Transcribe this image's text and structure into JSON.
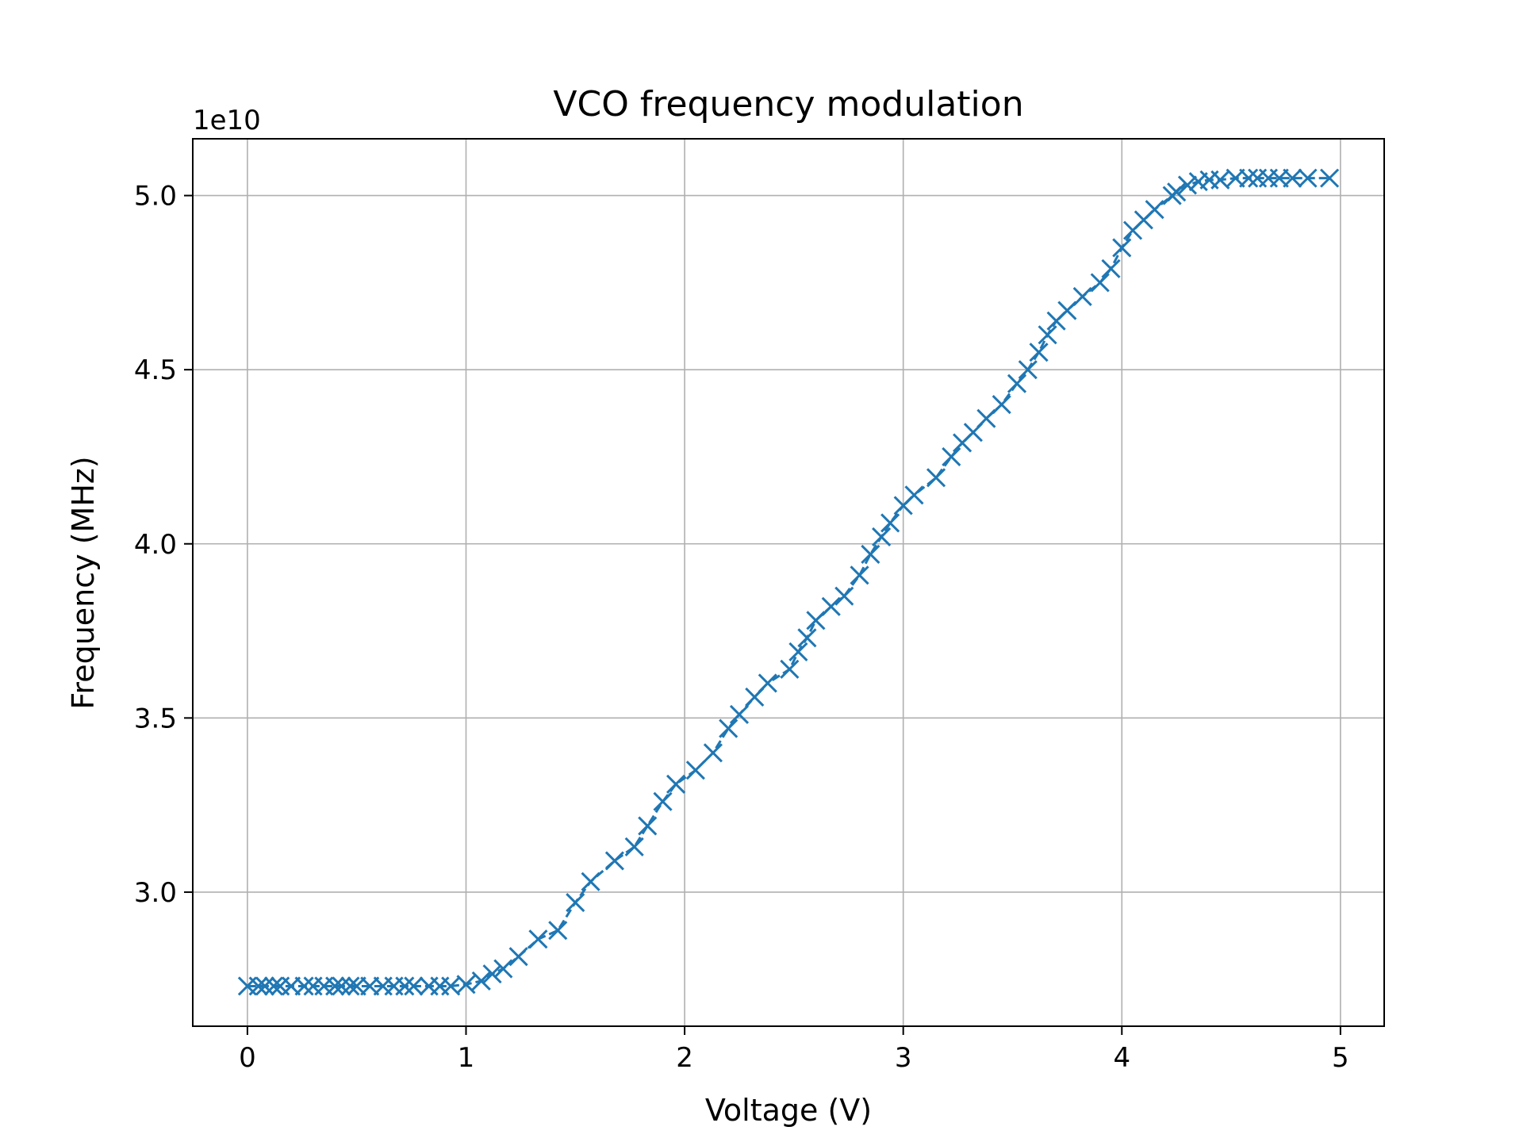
{
  "chart_data": {
    "type": "line",
    "title": "VCO frequency modulation",
    "xlabel": "Voltage (V)",
    "ylabel": "Frequency (MHz)",
    "y_offset_label": "1e10",
    "xlim": [
      -0.25,
      5.2
    ],
    "ylim": [
      2.615,
      5.163
    ],
    "x_ticks": [
      0,
      1,
      2,
      3,
      4,
      5
    ],
    "x_tick_labels": [
      "0",
      "1",
      "2",
      "3",
      "4",
      "5"
    ],
    "y_ticks": [
      3.0,
      3.5,
      4.0,
      4.5,
      5.0
    ],
    "y_tick_labels": [
      "3.0",
      "3.5",
      "4.0",
      "4.5",
      "5.0"
    ],
    "grid": true,
    "legend": "none",
    "series": [
      {
        "marker": "x",
        "color": "#1f77b4",
        "linestyle": "dashed",
        "points": [
          [
            0.0,
            2.73
          ],
          [
            0.05,
            2.73
          ],
          [
            0.08,
            2.73
          ],
          [
            0.12,
            2.73
          ],
          [
            0.15,
            2.73
          ],
          [
            0.2,
            2.73
          ],
          [
            0.26,
            2.73
          ],
          [
            0.3,
            2.73
          ],
          [
            0.35,
            2.73
          ],
          [
            0.4,
            2.73
          ],
          [
            0.43,
            2.73
          ],
          [
            0.47,
            2.73
          ],
          [
            0.5,
            2.73
          ],
          [
            0.56,
            2.73
          ],
          [
            0.62,
            2.73
          ],
          [
            0.67,
            2.73
          ],
          [
            0.72,
            2.73
          ],
          [
            0.76,
            2.73
          ],
          [
            0.83,
            2.73
          ],
          [
            0.88,
            2.73
          ],
          [
            0.93,
            2.73
          ],
          [
            1.0,
            2.735
          ],
          [
            1.07,
            2.745
          ],
          [
            1.12,
            2.765
          ],
          [
            1.17,
            2.78
          ],
          [
            1.24,
            2.815
          ],
          [
            1.33,
            2.865
          ],
          [
            1.42,
            2.89
          ],
          [
            1.5,
            2.97
          ],
          [
            1.57,
            3.03
          ],
          [
            1.68,
            3.09
          ],
          [
            1.77,
            3.13
          ],
          [
            1.83,
            3.19
          ],
          [
            1.9,
            3.26
          ],
          [
            1.96,
            3.31
          ],
          [
            2.05,
            3.35
          ],
          [
            2.13,
            3.4
          ],
          [
            2.2,
            3.47
          ],
          [
            2.25,
            3.51
          ],
          [
            2.32,
            3.56
          ],
          [
            2.38,
            3.6
          ],
          [
            2.48,
            3.64
          ],
          [
            2.52,
            3.69
          ],
          [
            2.56,
            3.73
          ],
          [
            2.6,
            3.78
          ],
          [
            2.67,
            3.82
          ],
          [
            2.73,
            3.85
          ],
          [
            2.8,
            3.91
          ],
          [
            2.85,
            3.97
          ],
          [
            2.9,
            4.02
          ],
          [
            2.94,
            4.06
          ],
          [
            3.0,
            4.11
          ],
          [
            3.05,
            4.14
          ],
          [
            3.15,
            4.19
          ],
          [
            3.22,
            4.25
          ],
          [
            3.27,
            4.29
          ],
          [
            3.32,
            4.32
          ],
          [
            3.38,
            4.36
          ],
          [
            3.45,
            4.4
          ],
          [
            3.52,
            4.46
          ],
          [
            3.57,
            4.5
          ],
          [
            3.62,
            4.55
          ],
          [
            3.66,
            4.6
          ],
          [
            3.7,
            4.64
          ],
          [
            3.75,
            4.67
          ],
          [
            3.82,
            4.71
          ],
          [
            3.9,
            4.75
          ],
          [
            3.95,
            4.79
          ],
          [
            4.0,
            4.85
          ],
          [
            4.05,
            4.9
          ],
          [
            4.1,
            4.93
          ],
          [
            4.15,
            4.96
          ],
          [
            4.23,
            5.0
          ],
          [
            4.25,
            5.01
          ],
          [
            4.3,
            5.03
          ],
          [
            4.35,
            5.04
          ],
          [
            4.4,
            5.045
          ],
          [
            4.45,
            5.045
          ],
          [
            4.52,
            5.05
          ],
          [
            4.58,
            5.05
          ],
          [
            4.62,
            5.05
          ],
          [
            4.67,
            5.05
          ],
          [
            4.72,
            5.05
          ],
          [
            4.78,
            5.05
          ],
          [
            4.85,
            5.05
          ],
          [
            4.95,
            5.05
          ]
        ]
      }
    ]
  }
}
